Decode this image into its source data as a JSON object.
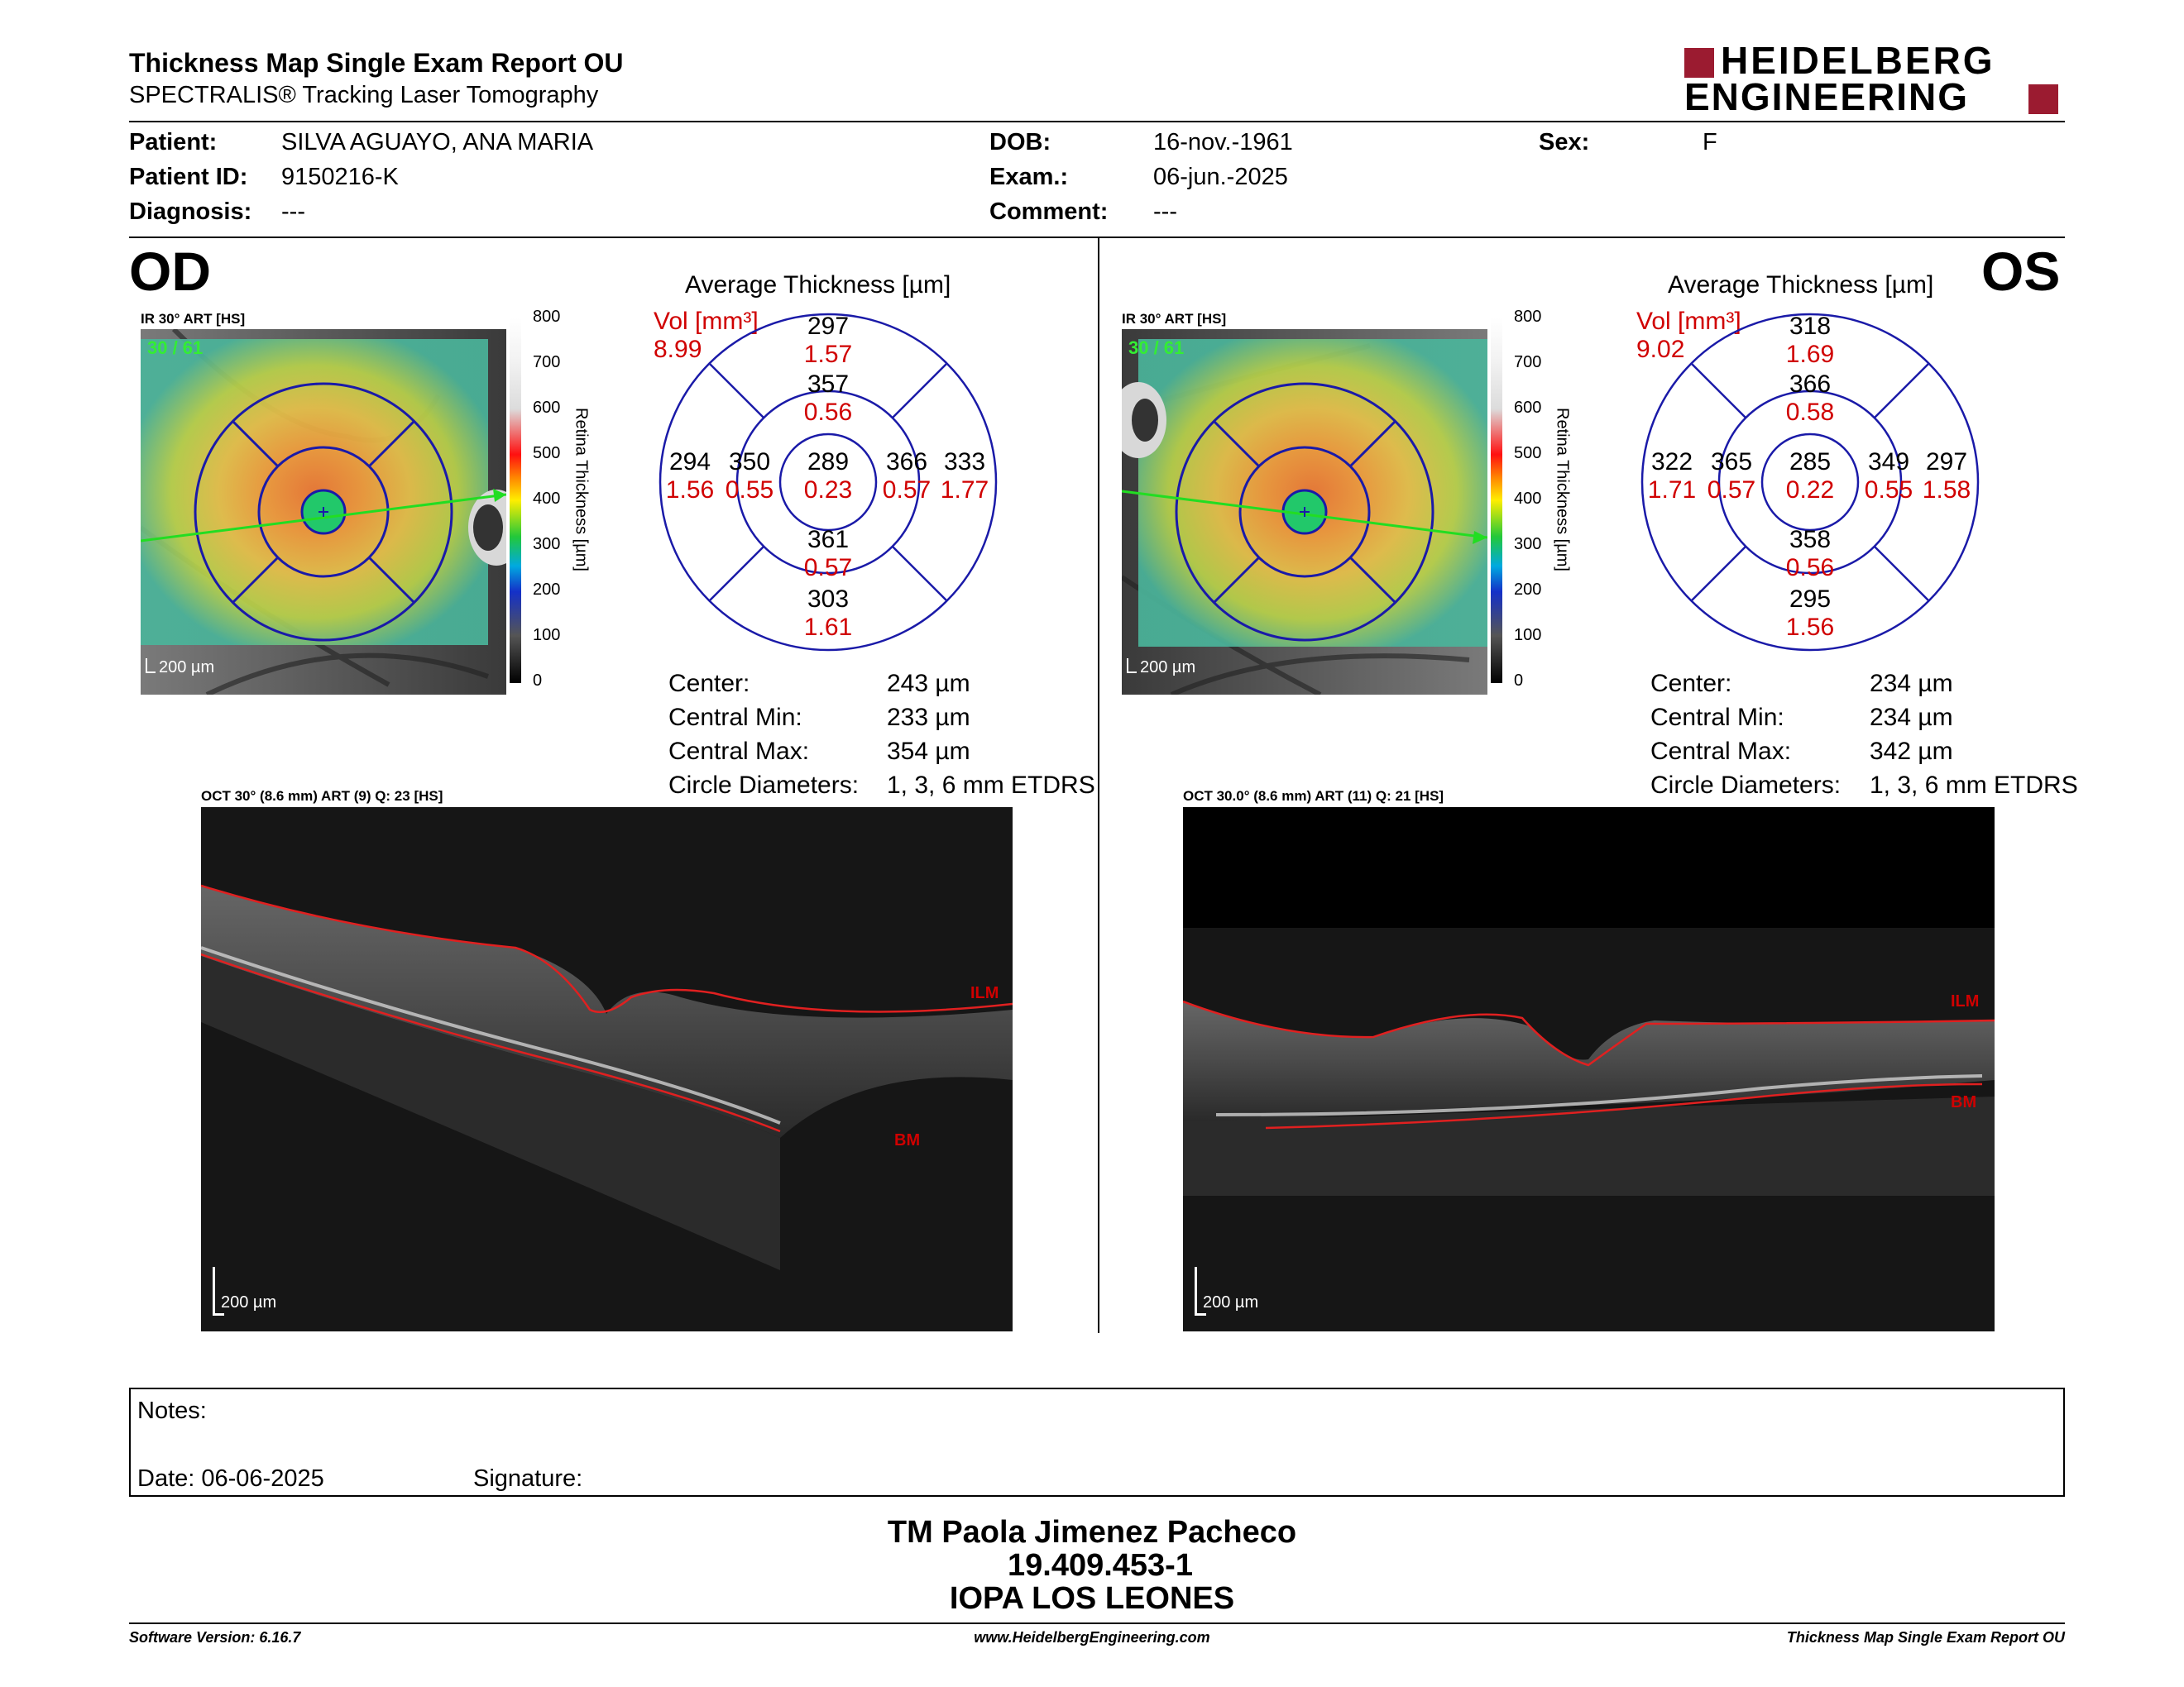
{
  "header": {
    "title": "Thickness Map Single Exam Report OU",
    "subtitle": "SPECTRALIS® Tracking Laser Tomography",
    "logo_line1": "HEIDELBERG",
    "logo_line2": "ENGINEERING",
    "brand_color": "#9b1b30"
  },
  "patient": {
    "patient_label": "Patient:",
    "patient_value": "SILVA AGUAYO, ANA MARIA",
    "id_label": "Patient ID:",
    "id_value": "9150216-K",
    "diagnosis_label": "Diagnosis:",
    "diagnosis_value": "---",
    "dob_label": "DOB:",
    "dob_value": "16-nov.-1961",
    "exam_label": "Exam.:",
    "exam_value": "06-jun.-2025",
    "comment_label": "Comment:",
    "comment_value": "---",
    "sex_label": "Sex:",
    "sex_value": "F"
  },
  "colorbar": {
    "ticks": [
      "800",
      "700",
      "600",
      "500",
      "400",
      "300",
      "200",
      "100",
      "0"
    ],
    "label": "Retina Thickness [µm]"
  },
  "od": {
    "eye": "OD",
    "fundus_label": "IR 30° ART [HS]",
    "fundus_count": "30 / 61",
    "fundus_scale": "200 µm",
    "avg_title": "Average Thickness [µm]",
    "vol_label": "Vol [mm³]",
    "vol_value": "8.99",
    "rings": {
      "center": {
        "t": "289",
        "v": "0.23"
      },
      "inner_sup": {
        "t": "357",
        "v": "0.56"
      },
      "inner_nas": {
        "t": "350",
        "v": "0.55"
      },
      "inner_temp": {
        "t": "366",
        "v": "0.57"
      },
      "inner_inf": {
        "t": "361",
        "v": "0.57"
      },
      "outer_sup": {
        "t": "297",
        "v": "1.57"
      },
      "outer_nas": {
        "t": "294",
        "v": "1.56"
      },
      "outer_temp": {
        "t": "333",
        "v": "1.77"
      },
      "outer_inf": {
        "t": "303",
        "v": "1.61"
      }
    },
    "stats": {
      "center_label": "Center:",
      "center_value": "243 µm",
      "min_label": "Central Min:",
      "min_value": "233 µm",
      "max_label": "Central Max:",
      "max_value": "354 µm",
      "diam_label": "Circle Diameters:",
      "diam_value": "1, 3, 6 mm ETDRS"
    },
    "oct_label": "OCT 30° (8.6 mm) ART (9) Q: 23 [HS]",
    "oct_ilm": "ILM",
    "oct_bm": "BM",
    "oct_scale": "200 µm"
  },
  "os": {
    "eye": "OS",
    "fundus_label": "IR 30° ART [HS]",
    "fundus_count": "30 / 61",
    "fundus_scale": "200 µm",
    "avg_title": "Average Thickness [µm]",
    "vol_label": "Vol [mm³]",
    "vol_value": "9.02",
    "rings": {
      "center": {
        "t": "285",
        "v": "0.22"
      },
      "inner_sup": {
        "t": "366",
        "v": "0.58"
      },
      "inner_nas": {
        "t": "365",
        "v": "0.57"
      },
      "inner_temp": {
        "t": "349",
        "v": "0.55"
      },
      "inner_inf": {
        "t": "358",
        "v": "0.56"
      },
      "outer_sup": {
        "t": "318",
        "v": "1.69"
      },
      "outer_nas": {
        "t": "322",
        "v": "1.71"
      },
      "outer_temp": {
        "t": "297",
        "v": "1.58"
      },
      "outer_inf": {
        "t": "295",
        "v": "1.56"
      }
    },
    "stats": {
      "center_label": "Center:",
      "center_value": "234 µm",
      "min_label": "Central Min:",
      "min_value": "234 µm",
      "max_label": "Central Max:",
      "max_value": "342 µm",
      "diam_label": "Circle Diameters:",
      "diam_value": "1, 3, 6 mm ETDRS"
    },
    "oct_label": "OCT 30.0° (8.6 mm) ART (11) Q: 21 [HS]",
    "oct_ilm": "ILM",
    "oct_bm": "BM",
    "oct_scale": "200 µm"
  },
  "notes": {
    "notes_label": "Notes:",
    "date_label": "Date: 06-06-2025",
    "signature_label": "Signature:"
  },
  "signatory": {
    "name": "TM Paola Jimenez Pacheco",
    "rut": "19.409.453-1",
    "institution": "IOPA LOS LEONES"
  },
  "footer": {
    "version": "Software Version: 6.16.7",
    "website": "www.HeidelbergEngineering.com",
    "report": "Thickness Map Single Exam Report OU"
  }
}
